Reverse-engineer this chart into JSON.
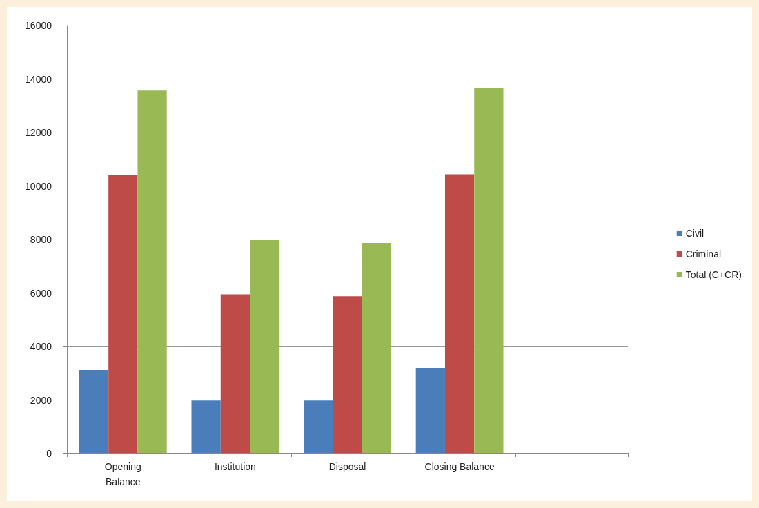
{
  "chart_data": {
    "type": "bar",
    "categories": [
      "Opening\nBalance",
      "Institution",
      "Disposal",
      "Closing Balance",
      null
    ],
    "series": [
      {
        "name": "Civil",
        "color": "#4a7ebb",
        "values": [
          3120,
          1980,
          1980,
          3200,
          null
        ]
      },
      {
        "name": "Criminal",
        "color": "#be4b48",
        "values": [
          10400,
          5950,
          5880,
          10440,
          null
        ]
      },
      {
        "name": "Total (C+CR)",
        "color": "#98b954",
        "values": [
          13570,
          8000,
          7870,
          13660,
          null
        ]
      }
    ],
    "ylim": [
      0,
      16000
    ],
    "yticks": [
      0,
      2000,
      4000,
      6000,
      8000,
      10000,
      12000,
      14000,
      16000
    ],
    "grid": "y",
    "legend": "right"
  }
}
